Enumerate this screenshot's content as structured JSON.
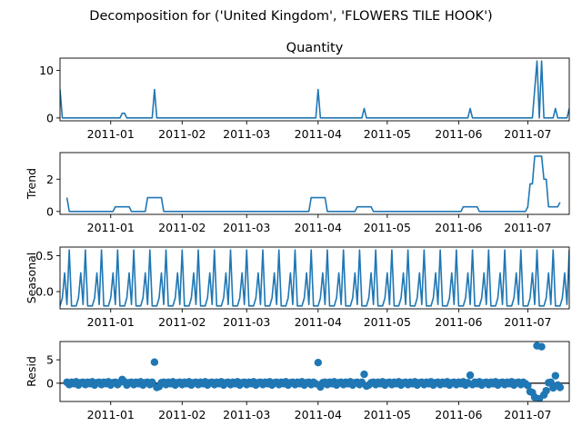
{
  "figure": {
    "suptitle": "Decomposition for ('United Kingdom', 'FLOWERS TILE HOOK')",
    "line_color": "#1f77b4"
  },
  "chart_data": [
    {
      "type": "line",
      "title": "Quantity",
      "ylabel": "",
      "xlim": [
        "2010-12-10",
        "2011-07-19"
      ],
      "ylim": [
        -0.6,
        12.6
      ],
      "yticks": [
        0,
        10
      ],
      "xticks": [
        "2011-01-01",
        "2011-02-01",
        "2011-03-01",
        "2011-04-01",
        "2011-05-01",
        "2011-06-01",
        "2011-07-01"
      ],
      "xtick_labels": [
        "2011-01",
        "2011-02",
        "2011-03",
        "2011-04",
        "2011-05",
        "2011-06",
        "2011-07"
      ],
      "default_y": 0,
      "points": [
        [
          "2010-12-10",
          6
        ],
        [
          "2010-12-11",
          0
        ],
        [
          "2011-01-05",
          0
        ],
        [
          "2011-01-06",
          1
        ],
        [
          "2011-01-07",
          1
        ],
        [
          "2011-01-08",
          0
        ],
        [
          "2011-01-19",
          0
        ],
        [
          "2011-01-20",
          6
        ],
        [
          "2011-01-21",
          0
        ],
        [
          "2011-03-31",
          0
        ],
        [
          "2011-04-01",
          6
        ],
        [
          "2011-04-02",
          0
        ],
        [
          "2011-04-20",
          0
        ],
        [
          "2011-04-21",
          2
        ],
        [
          "2011-04-22",
          0
        ],
        [
          "2011-06-05",
          0
        ],
        [
          "2011-06-06",
          2
        ],
        [
          "2011-06-07",
          0
        ],
        [
          "2011-07-03",
          0
        ],
        [
          "2011-07-05",
          12
        ],
        [
          "2011-07-06",
          0
        ],
        [
          "2011-07-07",
          12
        ],
        [
          "2011-07-08",
          0
        ],
        [
          "2011-07-12",
          0
        ],
        [
          "2011-07-13",
          2
        ],
        [
          "2011-07-14",
          0
        ],
        [
          "2011-07-18",
          0
        ],
        [
          "2011-07-19",
          2
        ]
      ]
    },
    {
      "type": "line",
      "title": "",
      "ylabel": "Trend",
      "xlim": [
        "2010-12-10",
        "2011-07-19"
      ],
      "ylim": [
        -0.18,
        3.65
      ],
      "yticks": [
        0,
        2
      ],
      "xticks": [
        "2011-01-01",
        "2011-02-01",
        "2011-03-01",
        "2011-04-01",
        "2011-05-01",
        "2011-06-01",
        "2011-07-01"
      ],
      "xtick_labels": [
        "2011-01",
        "2011-02",
        "2011-03",
        "2011-04",
        "2011-05",
        "2011-06",
        "2011-07"
      ],
      "points": [
        [
          "2010-12-13",
          0.86
        ],
        [
          "2010-12-14",
          0
        ],
        [
          "2011-01-02",
          0
        ],
        [
          "2011-01-03",
          0.29
        ],
        [
          "2011-01-09",
          0.29
        ],
        [
          "2011-01-10",
          0
        ],
        [
          "2011-01-16",
          0
        ],
        [
          "2011-01-17",
          0.86
        ],
        [
          "2011-01-23",
          0.86
        ],
        [
          "2011-01-24",
          0
        ],
        [
          "2011-03-28",
          0
        ],
        [
          "2011-03-29",
          0.86
        ],
        [
          "2011-04-04",
          0.86
        ],
        [
          "2011-04-05",
          0
        ],
        [
          "2011-04-17",
          0
        ],
        [
          "2011-04-18",
          0.29
        ],
        [
          "2011-04-24",
          0.29
        ],
        [
          "2011-04-25",
          0
        ],
        [
          "2011-06-02",
          0
        ],
        [
          "2011-06-03",
          0.29
        ],
        [
          "2011-06-09",
          0.29
        ],
        [
          "2011-06-10",
          0
        ],
        [
          "2011-06-30",
          0
        ],
        [
          "2011-07-01",
          0.29
        ],
        [
          "2011-07-02",
          1.71
        ],
        [
          "2011-07-03",
          1.71
        ],
        [
          "2011-07-04",
          3.43
        ],
        [
          "2011-07-07",
          3.43
        ],
        [
          "2011-07-08",
          2.0
        ],
        [
          "2011-07-09",
          2.0
        ],
        [
          "2011-07-10",
          0.29
        ],
        [
          "2011-07-14",
          0.29
        ],
        [
          "2011-07-15",
          0.57
        ]
      ]
    },
    {
      "type": "line",
      "title": "",
      "ylabel": "Seasonal",
      "xlim": [
        "2010-12-10",
        "2011-07-19"
      ],
      "ylim": [
        -0.24,
        0.62
      ],
      "yticks": [
        0.0,
        0.5
      ],
      "ytick_labels": [
        "0.0",
        "0.5"
      ],
      "xticks": [
        "2011-01-01",
        "2011-02-01",
        "2011-03-01",
        "2011-04-01",
        "2011-05-01",
        "2011-06-01",
        "2011-07-01"
      ],
      "xtick_labels": [
        "2011-01",
        "2011-02",
        "2011-03",
        "2011-04",
        "2011-05",
        "2011-06",
        "2011-07"
      ],
      "period_start": "2010-12-10",
      "pattern": [
        -0.2,
        -0.09,
        0.26,
        -0.18,
        0.58,
        -0.2,
        -0.2
      ]
    },
    {
      "type": "scatter",
      "title": "",
      "ylabel": "Resid",
      "xlim": [
        "2010-12-10",
        "2011-07-19"
      ],
      "ylim": [
        -3.9,
        8.9
      ],
      "yticks": [
        0,
        5
      ],
      "xticks": [
        "2011-01-01",
        "2011-02-01",
        "2011-03-01",
        "2011-04-01",
        "2011-05-01",
        "2011-06-01",
        "2011-07-01"
      ],
      "xtick_labels": [
        "2011-01",
        "2011-02",
        "2011-03",
        "2011-04",
        "2011-05",
        "2011-06",
        "2011-07"
      ],
      "zero_line": true,
      "baseline_start": "2010-12-13",
      "baseline_end": "2011-07-15",
      "baseline_pattern": [
        0.2,
        -0.3,
        0.2,
        -0.1,
        0.3,
        -0.4,
        0.1
      ],
      "overrides": [
        [
          "2011-01-06",
          0.8
        ],
        [
          "2011-01-20",
          4.5
        ],
        [
          "2011-01-21",
          -0.9
        ],
        [
          "2011-01-22",
          -0.7
        ],
        [
          "2011-04-01",
          4.4
        ],
        [
          "2011-04-02",
          -0.8
        ],
        [
          "2011-04-21",
          1.9
        ],
        [
          "2011-04-22",
          -0.6
        ],
        [
          "2011-06-06",
          1.7
        ],
        [
          "2011-06-07",
          -0.3
        ],
        [
          "2011-07-01",
          -0.5
        ],
        [
          "2011-07-02",
          -1.8
        ],
        [
          "2011-07-03",
          -2.0
        ],
        [
          "2011-07-04",
          -3.0
        ],
        [
          "2011-07-05",
          8.0
        ],
        [
          "2011-07-06",
          -3.3
        ],
        [
          "2011-07-07",
          7.8
        ],
        [
          "2011-07-08",
          -2.5
        ],
        [
          "2011-07-09",
          -1.6
        ],
        [
          "2011-07-12",
          -1.0
        ],
        [
          "2011-07-13",
          1.6
        ],
        [
          "2011-07-14",
          -0.4
        ],
        [
          "2011-07-15",
          -0.9
        ]
      ]
    }
  ]
}
